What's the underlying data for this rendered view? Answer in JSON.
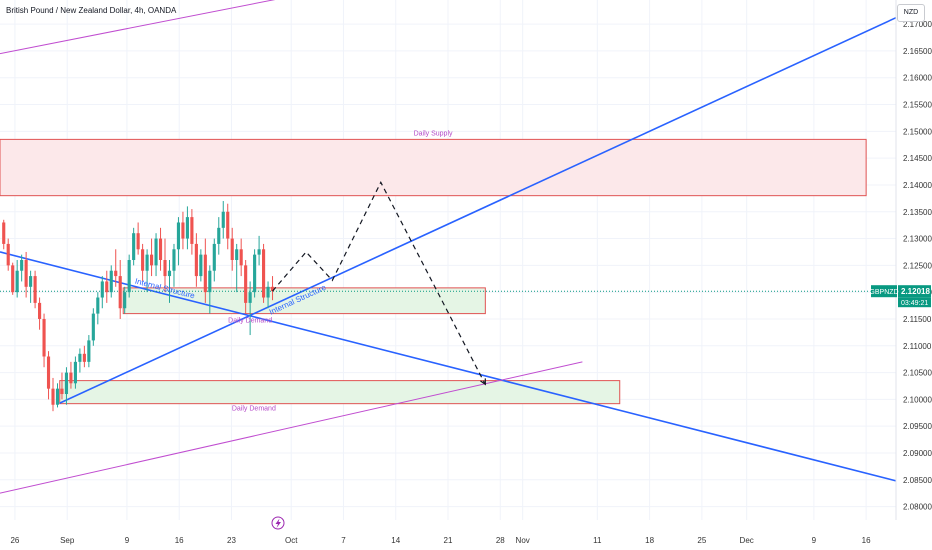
{
  "header": {
    "title": "British Pound / New Zealand Dollar, 4h, OANDA",
    "currency": "NZD"
  },
  "price_tag": {
    "symbol": "GBPNZD",
    "price": "2.12018",
    "countdown": "03:49:21"
  },
  "colors": {
    "trend_blue": "#2962ff",
    "channel_purple": "#c04dd0",
    "supply_border": "#e05252",
    "supply_fill": "#fce8ea",
    "demand_fill": "#e5f5e5",
    "label_purple": "#b44ac8",
    "candle_up": "#26a69a",
    "candle_down": "#ef5350",
    "price_tag_bg": "#089981"
  },
  "icons": {
    "event_marker": "lightning-icon"
  },
  "annotations": {
    "daily_supply": "Daily Supply",
    "daily_demand_upper": "Daily Demand",
    "daily_demand_lower": "Daily Demand",
    "internal_structure_upper": "Internal Structure",
    "internal_structure_lower": "Internal Structure"
  },
  "chart_data": {
    "type": "candlestick",
    "title": "British Pound / New Zealand Dollar, 4h, OANDA",
    "y_axis_unit": "NZD",
    "y_ticks": [
      "2.17000",
      "2.16500",
      "2.16000",
      "2.15500",
      "2.15000",
      "2.14500",
      "2.14000",
      "2.13500",
      "2.13000",
      "2.12500",
      "2.12000",
      "2.11500",
      "2.11000",
      "2.10500",
      "2.10000",
      "2.09500",
      "2.09000",
      "2.08500",
      "2.08000"
    ],
    "y_tick_values": [
      2.17,
      2.165,
      2.16,
      2.155,
      2.15,
      2.145,
      2.14,
      2.135,
      2.13,
      2.125,
      2.12,
      2.115,
      2.11,
      2.105,
      2.1,
      2.095,
      2.09,
      2.085,
      2.08
    ],
    "x_ticks": [
      "26",
      "Sep",
      "9",
      "16",
      "23",
      "Oct",
      "7",
      "14",
      "21",
      "28",
      "Nov",
      "11",
      "18",
      "25",
      "Dec",
      "9",
      "16"
    ],
    "x_tick_days": [
      -6,
      1,
      9,
      16,
      23,
      31,
      38,
      45,
      52,
      59,
      62,
      72,
      79,
      86,
      92,
      101,
      108
    ],
    "ylim": [
      2.0775,
      2.1745
    ],
    "xlim": [
      -8,
      112
    ],
    "last_price": 2.12018,
    "candles": [
      [
        -7.5,
        2.133,
        2.1335,
        2.128,
        2.129
      ],
      [
        -6.9,
        2.129,
        2.13,
        2.124,
        2.125
      ],
      [
        -6.3,
        2.125,
        2.1255,
        2.1195,
        2.12
      ],
      [
        -5.7,
        2.12,
        2.126,
        2.119,
        2.124
      ],
      [
        -5.1,
        2.124,
        2.127,
        2.122,
        2.126
      ],
      [
        -4.5,
        2.126,
        2.1275,
        2.119,
        2.121
      ],
      [
        -3.9,
        2.121,
        2.124,
        2.118,
        2.123
      ],
      [
        -3.3,
        2.123,
        2.124,
        2.117,
        2.118
      ],
      [
        -2.7,
        2.118,
        2.119,
        2.113,
        2.115
      ],
      [
        -2.1,
        2.115,
        2.116,
        2.106,
        2.108
      ],
      [
        -1.5,
        2.108,
        2.109,
        2.1,
        2.102
      ],
      [
        -0.9,
        2.102,
        2.104,
        2.0978,
        2.099
      ],
      [
        -0.3,
        2.099,
        2.103,
        2.0985,
        2.102
      ],
      [
        0.3,
        2.102,
        2.105,
        2.1,
        2.101
      ],
      [
        0.9,
        2.101,
        2.106,
        2.099,
        2.105
      ],
      [
        1.5,
        2.105,
        2.107,
        2.102,
        2.103
      ],
      [
        2.1,
        2.103,
        2.108,
        2.102,
        2.107
      ],
      [
        2.7,
        2.107,
        2.1095,
        2.105,
        2.1085
      ],
      [
        3.3,
        2.1085,
        2.11,
        2.106,
        2.107
      ],
      [
        3.9,
        2.107,
        2.112,
        2.106,
        2.111
      ],
      [
        4.5,
        2.111,
        2.117,
        2.11,
        2.116
      ],
      [
        5.1,
        2.116,
        2.12,
        2.114,
        2.119
      ],
      [
        5.7,
        2.119,
        2.123,
        2.117,
        2.122
      ],
      [
        6.3,
        2.122,
        2.124,
        2.118,
        2.12
      ],
      [
        6.9,
        2.12,
        2.125,
        2.119,
        2.124
      ],
      [
        7.5,
        2.124,
        2.128,
        2.121,
        2.123
      ],
      [
        8.1,
        2.123,
        2.126,
        2.115,
        2.117
      ],
      [
        8.7,
        2.117,
        2.121,
        2.116,
        2.12
      ],
      [
        9.3,
        2.12,
        2.127,
        2.119,
        2.126
      ],
      [
        9.9,
        2.126,
        2.132,
        2.125,
        2.131
      ],
      [
        10.5,
        2.131,
        2.133,
        2.127,
        2.128
      ],
      [
        11.1,
        2.128,
        2.129,
        2.122,
        2.124
      ],
      [
        11.7,
        2.124,
        2.128,
        2.12,
        2.127
      ],
      [
        12.3,
        2.127,
        2.13,
        2.123,
        2.125
      ],
      [
        12.9,
        2.125,
        2.131,
        2.123,
        2.13
      ],
      [
        13.5,
        2.13,
        2.132,
        2.124,
        2.126
      ],
      [
        14.1,
        2.126,
        2.13,
        2.12,
        2.123
      ],
      [
        14.7,
        2.123,
        2.126,
        2.118,
        2.124
      ],
      [
        15.3,
        2.124,
        2.129,
        2.121,
        2.128
      ],
      [
        15.9,
        2.128,
        2.134,
        2.125,
        2.133
      ],
      [
        16.5,
        2.133,
        2.135,
        2.128,
        2.13
      ],
      [
        17.1,
        2.13,
        2.136,
        2.128,
        2.134
      ],
      [
        17.7,
        2.134,
        2.1355,
        2.127,
        2.129
      ],
      [
        18.3,
        2.129,
        2.131,
        2.121,
        2.123
      ],
      [
        18.9,
        2.123,
        2.128,
        2.122,
        2.127
      ],
      [
        19.5,
        2.127,
        2.13,
        2.118,
        2.12
      ],
      [
        20.1,
        2.12,
        2.125,
        2.116,
        2.124
      ],
      [
        20.7,
        2.124,
        2.13,
        2.122,
        2.129
      ],
      [
        21.3,
        2.129,
        2.134,
        2.127,
        2.132
      ],
      [
        21.9,
        2.132,
        2.137,
        2.13,
        2.135
      ],
      [
        22.5,
        2.135,
        2.1365,
        2.128,
        2.13
      ],
      [
        23.1,
        2.13,
        2.132,
        2.124,
        2.126
      ],
      [
        23.7,
        2.126,
        2.129,
        2.12,
        2.128
      ],
      [
        24.3,
        2.128,
        2.13,
        2.123,
        2.125
      ],
      [
        24.9,
        2.125,
        2.126,
        2.116,
        2.118
      ],
      [
        25.5,
        2.118,
        2.122,
        2.112,
        2.12
      ],
      [
        26.1,
        2.12,
        2.128,
        2.119,
        2.127
      ],
      [
        26.7,
        2.127,
        2.1305,
        2.125,
        2.128
      ],
      [
        27.3,
        2.128,
        2.129,
        2.118,
        2.119
      ],
      [
        27.9,
        2.119,
        2.122,
        2.117,
        2.121
      ],
      [
        28.5,
        2.121,
        2.123,
        2.1185,
        2.1202
      ]
    ],
    "zones": [
      {
        "name": "Daily Supply",
        "x0": -8,
        "x1": 108,
        "y0": 2.138,
        "y1": 2.1485
      },
      {
        "name": "Daily Demand",
        "x0": 8.5,
        "x1": 57,
        "y0": 2.116,
        "y1": 2.1208
      },
      {
        "name": "Daily Demand",
        "x0": 0,
        "x1": 75,
        "y0": 2.0992,
        "y1": 2.1035
      }
    ],
    "trendlines": [
      {
        "type": "descending",
        "points": [
          [
            -8,
            2.1275
          ],
          [
            112,
            2.0848
          ]
        ]
      },
      {
        "type": "ascending",
        "points": [
          [
            0,
            2.0993
          ],
          [
            112,
            2.1712
          ]
        ]
      },
      {
        "type": "channel-upper",
        "points": [
          [
            -8,
            2.1645
          ],
          [
            34,
            2.176
          ]
        ]
      },
      {
        "type": "channel-lower",
        "points": [
          [
            -8,
            2.0825
          ],
          [
            70,
            2.107
          ]
        ]
      }
    ],
    "projection_path": [
      [
        28.5,
        2.1202
      ],
      [
        33,
        2.1275
      ],
      [
        36.5,
        2.1222
      ],
      [
        43,
        2.1405
      ],
      [
        57,
        2.1028
      ]
    ]
  }
}
